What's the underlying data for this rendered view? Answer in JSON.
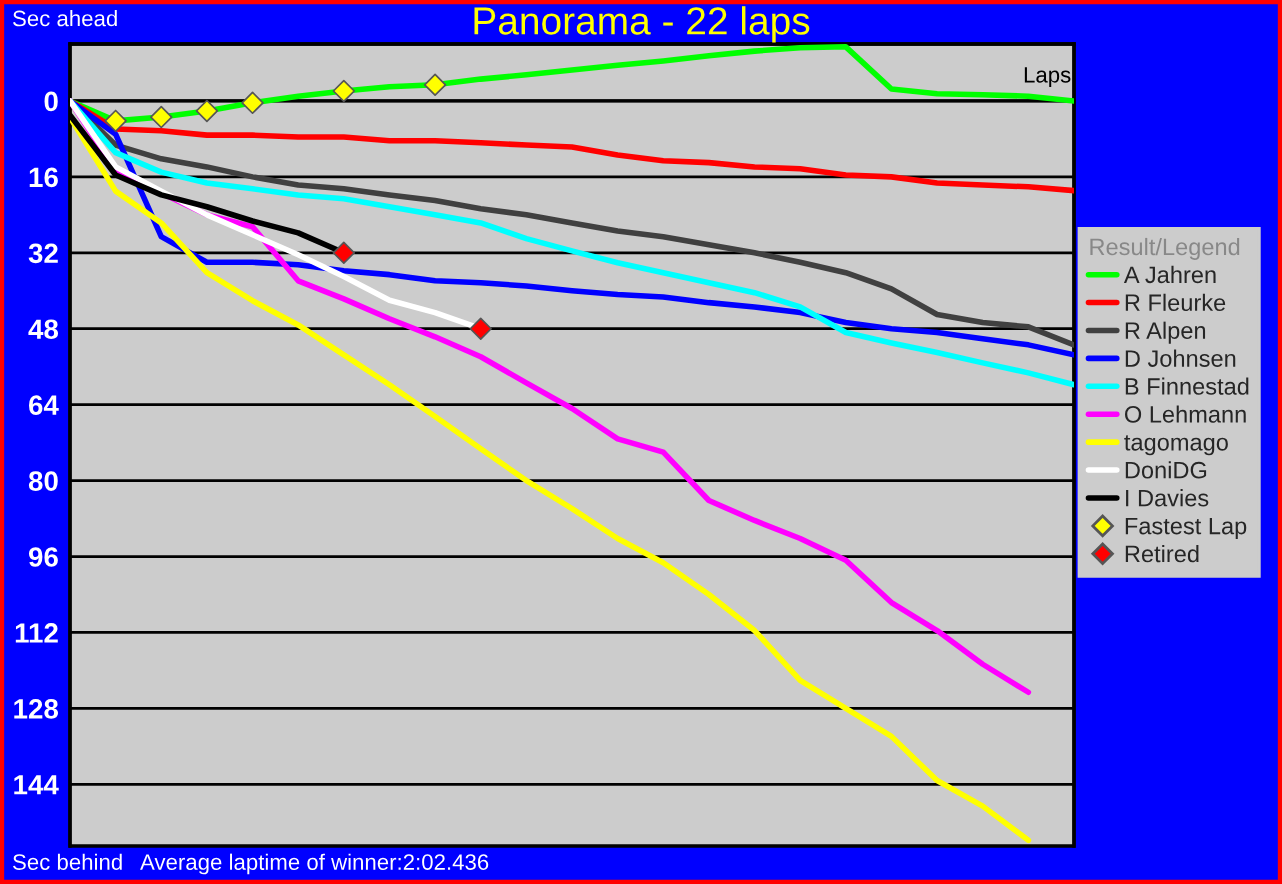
{
  "chart_data": {
    "type": "line",
    "title": "Panorama - 22 laps",
    "ylabel": "Sec ahead",
    "xlabel": "Laps",
    "legend_title": "Result/Legend",
    "annotations": [
      "Sec behind",
      "Average laptime of winner:2:02.436"
    ],
    "categories": [
      null,
      null,
      null,
      null,
      null,
      null,
      null,
      null,
      null,
      null,
      null,
      null,
      null,
      null,
      null,
      null,
      null,
      null,
      null,
      null,
      null,
      null,
      null
    ],
    "series": [
      {
        "name": "A Jahren",
        "color": "#00ff00",
        "values": [
          0,
          4.2,
          3.4,
          2.1,
          0.4,
          -1,
          -2.1,
          -3,
          -3.4,
          -4.6,
          -5.5,
          -6.5,
          -7.5,
          -8.4,
          -9.5,
          -10.5,
          -11.2,
          -11.4,
          -2.5,
          -1.5,
          -1.3,
          -1,
          0
        ]
      },
      {
        "name": "R Fleurke",
        "color": "#ff0000",
        "values": [
          0,
          5.9,
          6.3,
          7.2,
          7.2,
          7.6,
          7.6,
          8.4,
          8.4,
          8.8,
          9.3,
          9.7,
          11.4,
          12.6,
          13,
          13.9,
          14.3,
          15.6,
          16,
          17.3,
          17.7,
          18.1,
          18.9
        ]
      },
      {
        "name": "R Alpen",
        "color": "#404040",
        "values": [
          0,
          9.3,
          12.2,
          13.9,
          16,
          17.7,
          18.5,
          19.8,
          21,
          22.7,
          24,
          25.7,
          27.4,
          28.6,
          30.3,
          32,
          34,
          36.2,
          39.6,
          45,
          46.7,
          47.6,
          51.4
        ]
      },
      {
        "name": "D Johnsen",
        "color": "#0000ff",
        "values": [
          0,
          7,
          28.6,
          34,
          34,
          34.5,
          35.8,
          36.6,
          37.9,
          38.3,
          39,
          40,
          40.8,
          41.3,
          42.5,
          43.4,
          44.6,
          46.7,
          48,
          48.8,
          50.1,
          51.4,
          53.5
        ]
      },
      {
        "name": "B Finnestad",
        "color": "#00ffff",
        "values": [
          0,
          10.9,
          15,
          17.3,
          18.5,
          19.8,
          20.6,
          22.3,
          24,
          25.7,
          29,
          31.6,
          34.1,
          36.2,
          38.3,
          40.4,
          43.4,
          48.8,
          51,
          53,
          55.2,
          57.3,
          59.8
        ]
      },
      {
        "name": "O Lehmann",
        "color": "#ff00ff",
        "values": [
          0,
          14.7,
          19.4,
          24,
          26.5,
          37.9,
          41.7,
          45.9,
          49.7,
          53.9,
          59.4,
          64.8,
          71.2,
          74,
          84.2,
          88.4,
          92.2,
          96.8,
          105.7,
          111.6,
          118.7,
          124.6,
          null
        ]
      },
      {
        "name": "tagomago",
        "color": "#ffff00",
        "values": [
          3.4,
          19,
          25.7,
          36.2,
          42.1,
          47.2,
          53.5,
          59.8,
          66.5,
          73.3,
          80,
          85.9,
          92.2,
          97.3,
          104,
          111.6,
          122.1,
          128,
          133.9,
          143.2,
          148.6,
          155.8,
          null
        ]
      },
      {
        "name": "DoniDG",
        "color": "#ffffff",
        "values": [
          0,
          13.9,
          19,
          24,
          28.2,
          32.4,
          37,
          42,
          44.6,
          48,
          null,
          null,
          null,
          null,
          null,
          null,
          null,
          null,
          null,
          null,
          null,
          null,
          null
        ]
      },
      {
        "name": "I Davies",
        "color": "#000000",
        "values": [
          3,
          15.6,
          19.8,
          22.3,
          25.3,
          27.8,
          32,
          null,
          null,
          null,
          null,
          null,
          null,
          null,
          null,
          null,
          null,
          null,
          null,
          null,
          null,
          null,
          null
        ]
      },
      {
        "name": "Fastest Lap",
        "type": "scatter",
        "marker": "diamond",
        "color": "#ffff00",
        "values": [
          null,
          4.2,
          3.4,
          2.1,
          0.4,
          null,
          -2.1,
          null,
          -3.4,
          null,
          null,
          null,
          null,
          null,
          null,
          null,
          null,
          null,
          null,
          null,
          null,
          null,
          null
        ]
      },
      {
        "name": "Retired",
        "type": "scatter",
        "marker": "diamond",
        "color": "#ff0000",
        "values": [
          null,
          null,
          null,
          null,
          null,
          null,
          32,
          null,
          null,
          48,
          null,
          null,
          null,
          null,
          null,
          null,
          null,
          null,
          null,
          null,
          null,
          null,
          null
        ]
      }
    ],
    "ylim": [
      157,
      -12
    ],
    "yticks": [
      0,
      16,
      32,
      48,
      64,
      80,
      96,
      112,
      128,
      144
    ],
    "grid": "y",
    "legend": "right"
  }
}
